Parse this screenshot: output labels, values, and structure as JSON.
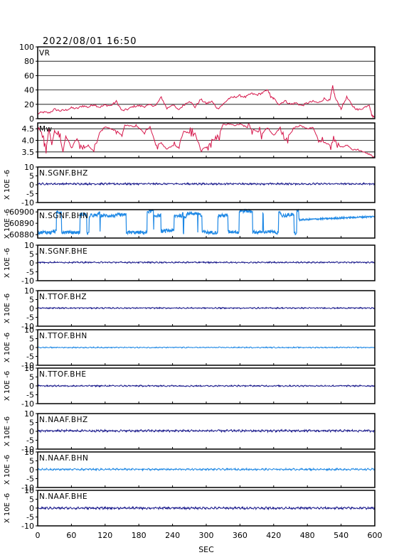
{
  "header": {
    "datetime": "2022/08/01 16:50"
  },
  "colors": {
    "frame": "#000000",
    "grid": "#000000",
    "crimson": "#d6184c",
    "navy": "#1a1a8c",
    "azure": "#1e88e5"
  },
  "chart_data": {
    "type": "line",
    "x_range": [
      0,
      600
    ],
    "x_ticks": [
      0,
      60,
      120,
      180,
      240,
      300,
      360,
      420,
      480,
      540,
      600
    ],
    "xlabel": "SEC",
    "panels": [
      {
        "id": "vr",
        "label": "VR",
        "ylim": [
          0,
          100
        ],
        "yticks": [
          0,
          20,
          40,
          60,
          80,
          100
        ],
        "yunit": "",
        "grid": true,
        "color": "crimson",
        "kind": "vr",
        "points": [
          [
            0,
            7
          ],
          [
            10,
            9
          ],
          [
            20,
            8
          ],
          [
            30,
            13
          ],
          [
            40,
            11
          ],
          [
            50,
            12
          ],
          [
            60,
            15
          ],
          [
            70,
            14
          ],
          [
            80,
            18
          ],
          [
            90,
            16
          ],
          [
            100,
            20
          ],
          [
            110,
            16
          ],
          [
            120,
            19
          ],
          [
            130,
            18
          ],
          [
            140,
            24
          ],
          [
            150,
            11
          ],
          [
            160,
            13
          ],
          [
            170,
            17
          ],
          [
            180,
            18
          ],
          [
            190,
            17
          ],
          [
            200,
            19
          ],
          [
            210,
            18
          ],
          [
            220,
            30
          ],
          [
            230,
            14
          ],
          [
            240,
            20
          ],
          [
            250,
            12
          ],
          [
            260,
            19
          ],
          [
            270,
            25
          ],
          [
            280,
            16
          ],
          [
            290,
            27
          ],
          [
            300,
            21
          ],
          [
            310,
            24
          ],
          [
            320,
            14
          ],
          [
            330,
            20
          ],
          [
            340,
            28
          ],
          [
            350,
            30
          ],
          [
            360,
            32
          ],
          [
            370,
            30
          ],
          [
            380,
            35
          ],
          [
            390,
            33
          ],
          [
            400,
            36
          ],
          [
            410,
            40
          ],
          [
            415,
            30
          ],
          [
            420,
            28
          ],
          [
            430,
            20
          ],
          [
            440,
            25
          ],
          [
            450,
            20
          ],
          [
            460,
            22
          ],
          [
            470,
            18
          ],
          [
            480,
            22
          ],
          [
            490,
            24
          ],
          [
            500,
            22
          ],
          [
            510,
            28
          ],
          [
            520,
            25
          ],
          [
            525,
            45
          ],
          [
            530,
            28
          ],
          [
            540,
            14
          ],
          [
            550,
            30
          ],
          [
            560,
            18
          ],
          [
            570,
            12
          ],
          [
            580,
            15
          ],
          [
            590,
            20
          ],
          [
            595,
            4
          ],
          [
            600,
            2
          ]
        ]
      },
      {
        "id": "mw",
        "label": "Mw",
        "ylim": [
          3.25,
          4.75
        ],
        "yticks": [
          3.5,
          4.0,
          4.5
        ],
        "yticklabels": [
          "3.5",
          "4.0",
          "4.5"
        ],
        "yunit": "",
        "grid": true,
        "color": "crimson",
        "kind": "mw",
        "points": [
          [
            0,
            4.6
          ],
          [
            10,
            4.2
          ],
          [
            15,
            3.6
          ],
          [
            20,
            4.5
          ],
          [
            25,
            3.8
          ],
          [
            30,
            4.4
          ],
          [
            40,
            4.1
          ],
          [
            45,
            3.5
          ],
          [
            50,
            4.2
          ],
          [
            60,
            3.7
          ],
          [
            70,
            4.1
          ],
          [
            80,
            3.6
          ],
          [
            90,
            3.8
          ],
          [
            100,
            3.5
          ],
          [
            110,
            4.3
          ],
          [
            120,
            4.6
          ],
          [
            130,
            4.5
          ],
          [
            140,
            4.4
          ],
          [
            150,
            4.2
          ],
          [
            155,
            4.65
          ],
          [
            170,
            4.6
          ],
          [
            180,
            4.55
          ],
          [
            190,
            4.3
          ],
          [
            200,
            4.6
          ],
          [
            210,
            3.8
          ],
          [
            220,
            3.9
          ],
          [
            230,
            3.6
          ],
          [
            240,
            3.8
          ],
          [
            250,
            3.7
          ],
          [
            260,
            4.4
          ],
          [
            270,
            4.3
          ],
          [
            280,
            4.3
          ],
          [
            290,
            3.6
          ],
          [
            300,
            3.7
          ],
          [
            310,
            4.0
          ],
          [
            320,
            4.05
          ],
          [
            330,
            4.7
          ],
          [
            340,
            4.7
          ],
          [
            350,
            4.65
          ],
          [
            360,
            4.7
          ],
          [
            370,
            4.6
          ],
          [
            380,
            4.5
          ],
          [
            390,
            4.4
          ],
          [
            400,
            4.3
          ],
          [
            410,
            4.55
          ],
          [
            420,
            4.2
          ],
          [
            430,
            4.5
          ],
          [
            440,
            4.0
          ],
          [
            450,
            4.3
          ],
          [
            460,
            4.6
          ],
          [
            470,
            4.6
          ],
          [
            480,
            4.5
          ],
          [
            490,
            4.55
          ],
          [
            500,
            4.0
          ],
          [
            510,
            3.9
          ],
          [
            520,
            3.8
          ],
          [
            530,
            4.0
          ],
          [
            540,
            3.7
          ],
          [
            550,
            3.8
          ],
          [
            560,
            3.6
          ],
          [
            570,
            3.6
          ],
          [
            580,
            3.5
          ],
          [
            590,
            3.4
          ],
          [
            600,
            3.3
          ]
        ]
      },
      {
        "id": "sgnf_bhz",
        "label": "N.SGNF.BHZ",
        "ylim": [
          -10,
          10
        ],
        "yticks": [
          -10,
          -5,
          0,
          5,
          10
        ],
        "yunit": "X 10E -6",
        "grid": false,
        "color": "navy",
        "kind": "noise",
        "baseline": 0.5,
        "amp": 0.5
      },
      {
        "id": "sgnf_bhn",
        "label": "N.SGNF.BHN",
        "ylim": [
          60877,
          60902
        ],
        "yticks": [
          60880,
          60890,
          60900
        ],
        "yunit": "X 10E -6",
        "grid": false,
        "color": "azure",
        "kind": "bhn"
      },
      {
        "id": "sgnf_bhe",
        "label": "N.SGNF.BHE",
        "ylim": [
          -10,
          10
        ],
        "yticks": [
          -10,
          -5,
          0,
          5,
          10
        ],
        "yunit": "X 10E -6",
        "grid": false,
        "color": "navy",
        "kind": "noise",
        "baseline": 0.3,
        "amp": 0.4
      },
      {
        "id": "ttof_bhz",
        "label": "N.TTOF.BHZ",
        "ylim": [
          -10,
          10
        ],
        "yticks": [
          -10,
          -5,
          0,
          5,
          10
        ],
        "yunit": "X 10E -6",
        "grid": false,
        "color": "navy",
        "kind": "noise",
        "baseline": 0.2,
        "amp": 0.35
      },
      {
        "id": "ttof_bhn",
        "label": "N.TTOF.BHN",
        "ylim": [
          -10,
          10
        ],
        "yticks": [
          -10,
          -5,
          0,
          5,
          10
        ],
        "yunit": "X 10E -6",
        "grid": false,
        "color": "azure",
        "kind": "noise",
        "baseline": 0.0,
        "amp": 0.3
      },
      {
        "id": "ttof_bhe",
        "label": "N.TTOF.BHE",
        "ylim": [
          -10,
          10
        ],
        "yticks": [
          -10,
          -5,
          0,
          5,
          10
        ],
        "yunit": "X 10E -6",
        "grid": false,
        "color": "navy",
        "kind": "noise",
        "baseline": 0.0,
        "amp": 0.4
      },
      {
        "id": "naaf_bhz",
        "label": "N.NAAF.BHZ",
        "ylim": [
          -10,
          10
        ],
        "yticks": [
          -10,
          -5,
          0,
          5,
          10
        ],
        "yunit": "X 10E -6",
        "grid": false,
        "color": "navy",
        "kind": "noise",
        "baseline": 0.3,
        "amp": 0.6
      },
      {
        "id": "naaf_bhn",
        "label": "N.NAAF.BHN",
        "ylim": [
          -10,
          10
        ],
        "yticks": [
          -10,
          -5,
          0,
          5,
          10
        ],
        "yunit": "X 10E -6",
        "grid": false,
        "color": "azure",
        "kind": "noise",
        "baseline": 0.2,
        "amp": 0.5
      },
      {
        "id": "naaf_bhe",
        "label": "N.NAAF.BHE",
        "ylim": [
          -10,
          10
        ],
        "yticks": [
          -10,
          -5,
          0,
          5,
          10
        ],
        "yunit": "X 10E -6",
        "grid": false,
        "color": "navy",
        "kind": "noise",
        "baseline": 0.0,
        "amp": 0.6
      }
    ]
  }
}
